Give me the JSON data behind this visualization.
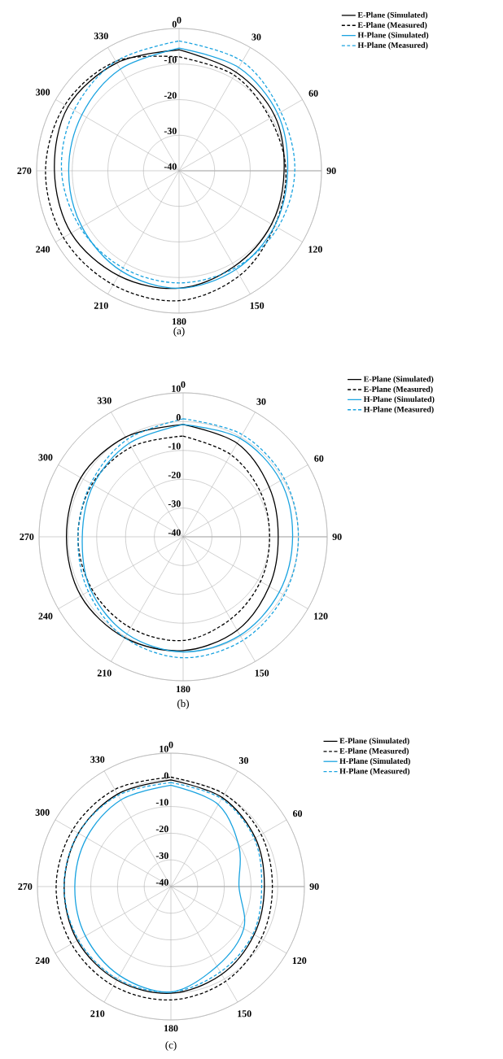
{
  "chart_data": [
    {
      "type": "radar",
      "categories": [
        "0",
        "30",
        "60",
        "90",
        "120",
        "150",
        "180",
        "210",
        "240",
        "270",
        "300",
        "330"
      ],
      "ylim": [
        -40,
        0
      ],
      "yticks": [
        -40,
        -30,
        -20,
        -10,
        0
      ],
      "grid": true,
      "legend": "top right",
      "annotations": [
        "(a)"
      ],
      "series": [
        {
          "name": "E-Plane (Simulated)",
          "color": "#000000",
          "line_style": "solid",
          "values": [
            -6,
            -8,
            -9,
            -10.5,
            -10,
            -9,
            -7,
            -6,
            -5,
            -5,
            -4,
            -5
          ]
        },
        {
          "name": "E-Plane (Measured)",
          "color": "#000000",
          "line_style": "dashed",
          "values": [
            -8,
            -9,
            -10.5,
            -10,
            -9,
            -6,
            -3.5,
            -3,
            -2.5,
            -2.5,
            -3,
            -4.5
          ]
        },
        {
          "name": "H-Plane (Simulated)",
          "color": "#1aa3e0",
          "line_style": "solid",
          "values": [
            -5.5,
            -6.5,
            -8,
            -9.5,
            -9,
            -8,
            -7,
            -7.5,
            -8.5,
            -9,
            -8.5,
            -7
          ]
        },
        {
          "name": "H-Plane (Measured)",
          "color": "#1aa3e0",
          "line_style": "dashed",
          "values": [
            -3.5,
            -4.5,
            -7,
            -7.5,
            -8,
            -8.5,
            -8.5,
            -8.5,
            -8,
            -7,
            -6,
            -4.5
          ]
        }
      ]
    },
    {
      "type": "radar",
      "categories": [
        "0",
        "30",
        "60",
        "90",
        "120",
        "150",
        "180",
        "210",
        "240",
        "270",
        "300",
        "330"
      ],
      "ylim": [
        -40,
        10
      ],
      "yticks": [
        -40,
        -30,
        -20,
        -10,
        0,
        10
      ],
      "grid": true,
      "legend": "top right",
      "annotations": [
        "(b)"
      ],
      "series": [
        {
          "name": "E-Plane (Simulated)",
          "color": "#000000",
          "line_style": "solid",
          "values": [
            -1,
            -2.5,
            -5.5,
            -7,
            -5.5,
            -2.5,
            -0.5,
            0.5,
            1,
            0.5,
            1,
            0
          ]
        },
        {
          "name": "E-Plane (Measured)",
          "color": "#000000",
          "line_style": "dashed",
          "values": [
            -5,
            -7,
            -9,
            -10,
            -9,
            -7,
            -4,
            -3.5,
            -3.5,
            -3.5,
            -3.5,
            -4
          ]
        },
        {
          "name": "H-Plane (Simulated)",
          "color": "#1aa3e0",
          "line_style": "solid",
          "values": [
            -1,
            -0.5,
            -1,
            -2,
            -1.5,
            -0.5,
            0,
            -1,
            -3,
            -5,
            -4,
            -2.5
          ]
        },
        {
          "name": "H-Plane (Measured)",
          "color": "#1aa3e0",
          "line_style": "dashed",
          "values": [
            1,
            1,
            0.5,
            0,
            0.5,
            1.5,
            2,
            0.5,
            -2,
            -3.5,
            -3,
            -1
          ]
        }
      ]
    },
    {
      "type": "radar",
      "categories": [
        "0",
        "30",
        "60",
        "90",
        "120",
        "150",
        "180",
        "210",
        "240",
        "270",
        "300",
        "330"
      ],
      "ylim": [
        -40,
        10
      ],
      "yticks": [
        -40,
        -30,
        -20,
        -10,
        0,
        10
      ],
      "grid": true,
      "legend": "top right",
      "annotations": [
        "(c)"
      ],
      "series": [
        {
          "name": "E-Plane (Simulated)",
          "color": "#000000",
          "line_style": "solid",
          "values": [
            0,
            -1.5,
            -3.5,
            -5,
            -4,
            -2,
            0,
            0.5,
            0.5,
            0,
            0,
            0
          ]
        },
        {
          "name": "E-Plane (Measured)",
          "color": "#000000",
          "line_style": "dashed",
          "values": [
            1,
            0,
            -1,
            -2,
            -1,
            1,
            2.5,
            3,
            3,
            3,
            2.5,
            2
          ]
        },
        {
          "name": "H-Plane (Simulated)",
          "color": "#1aa3e0",
          "line_style": "solid",
          "values": [
            -2,
            -4.5,
            -10.5,
            -14.5,
            -8.5,
            -5.5,
            -0.5,
            -1.5,
            -3,
            -4,
            -3.5,
            -2.5
          ]
        },
        {
          "name": "H-Plane (Measured)",
          "color": "#1aa3e0",
          "line_style": "dashed",
          "values": [
            -1,
            -2,
            -4,
            -6,
            -4.5,
            -3,
            -0.5,
            0,
            0,
            0,
            0,
            -0.5
          ]
        }
      ]
    }
  ]
}
